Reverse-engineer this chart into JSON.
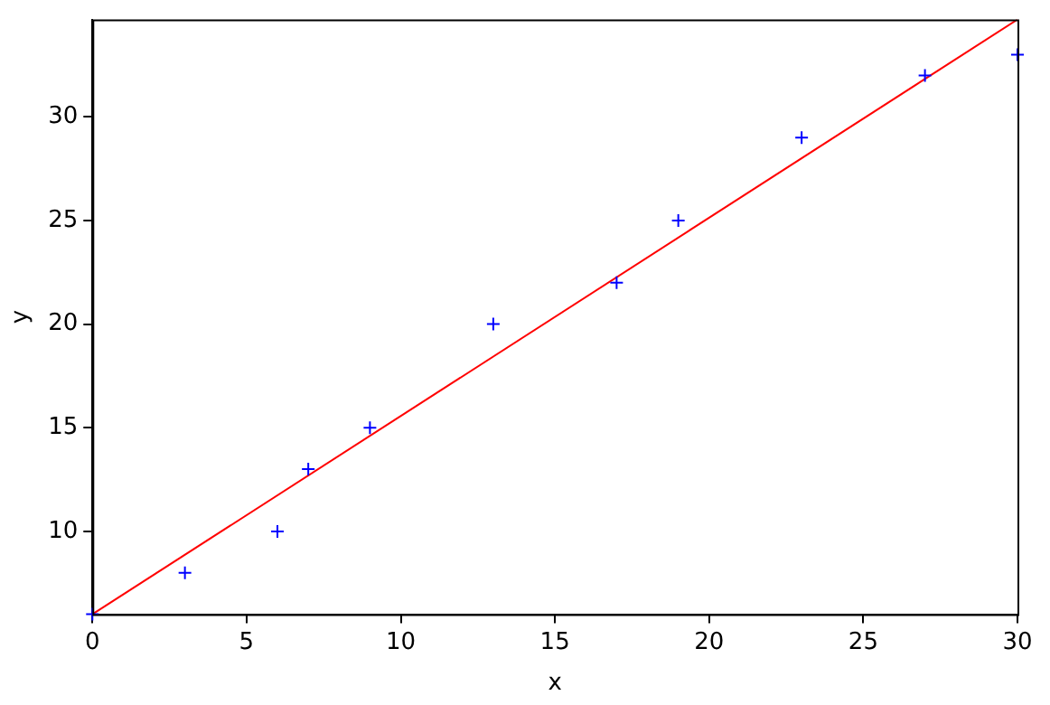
{
  "chart_data": {
    "type": "scatter",
    "xlabel": "x",
    "ylabel": "y",
    "xlim": [
      0,
      30
    ],
    "ylim": [
      6,
      34.7
    ],
    "xticks": [
      0,
      5,
      10,
      15,
      20,
      25,
      30
    ],
    "yticks": [
      10,
      15,
      20,
      25,
      30
    ],
    "grid": false,
    "legend": false,
    "series": [
      {
        "marker": "cross",
        "color": "#0000ff",
        "x": [
          0,
          3,
          6,
          7,
          9,
          13,
          17,
          19,
          23,
          27,
          30
        ],
        "values": [
          6,
          8,
          10,
          13,
          15,
          20,
          22,
          25,
          29,
          32,
          33
        ]
      },
      {
        "type": "line",
        "marker": "none",
        "color": "#ff0000",
        "x": [
          0,
          30
        ],
        "values": [
          6,
          34.7
        ]
      }
    ]
  }
}
